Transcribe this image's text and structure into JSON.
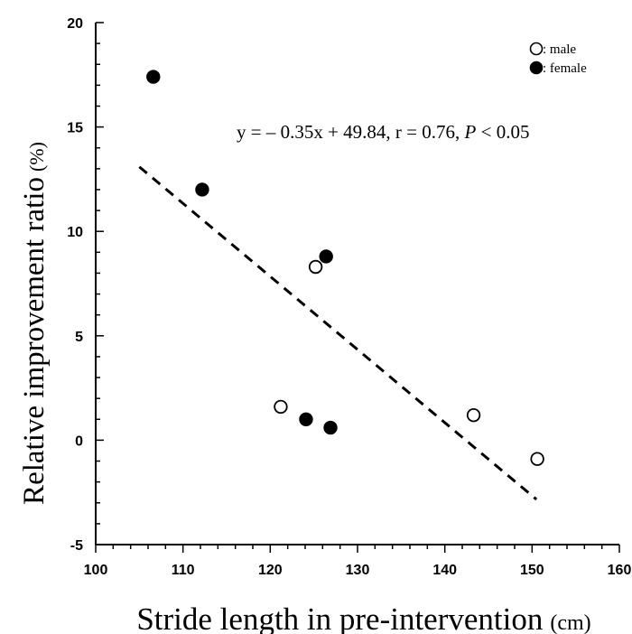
{
  "chart_data": {
    "type": "scatter",
    "xlabel": "Stride length in pre-intervention",
    "xlabel_unit": "(cm)",
    "ylabel": "Relative improvement ratio",
    "ylabel_unit": "(%)",
    "xlim": [
      100,
      160
    ],
    "ylim": [
      -5,
      20
    ],
    "xticks": [
      100,
      110,
      120,
      130,
      140,
      150,
      160
    ],
    "yticks": [
      -5,
      0,
      5,
      10,
      15,
      20
    ],
    "legend_position": "top-right",
    "grid": false,
    "series": [
      {
        "name": ": male",
        "marker": "open-circle",
        "points": [
          {
            "x": 125.2,
            "y": 8.3
          },
          {
            "x": 121.2,
            "y": 1.6
          },
          {
            "x": 143.3,
            "y": 1.2
          },
          {
            "x": 150.6,
            "y": -0.9
          }
        ]
      },
      {
        "name": ": female",
        "marker": "filled-circle",
        "points": [
          {
            "x": 106.6,
            "y": 17.4
          },
          {
            "x": 112.2,
            "y": 12.0
          },
          {
            "x": 126.4,
            "y": 8.8
          },
          {
            "x": 124.1,
            "y": 1.0
          },
          {
            "x": 126.9,
            "y": 0.6
          }
        ]
      }
    ],
    "regression": {
      "slope": -0.35,
      "intercept": 49.84,
      "x_range": [
        105,
        150.5
      ],
      "style": "dashed",
      "label_main": "y = – 0.35x + 49.84, r = 0.76, ",
      "label_p": "P",
      "label_tail": " < 0.05"
    }
  }
}
